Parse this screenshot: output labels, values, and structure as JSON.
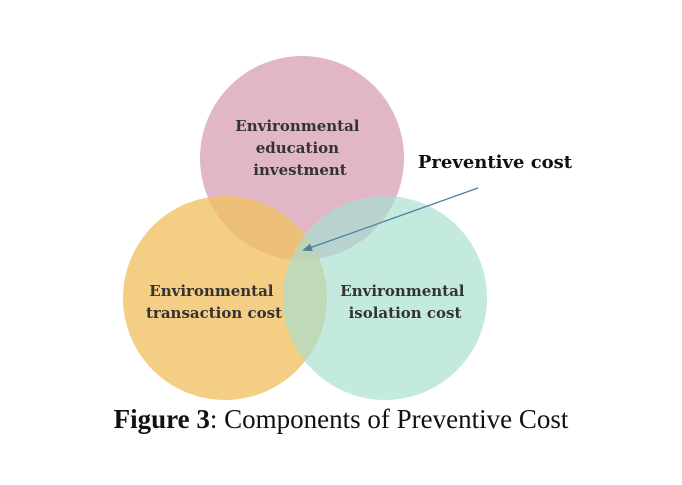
{
  "circles": {
    "top": {
      "lines": [
        "Environmental",
        "education",
        "investment"
      ],
      "color": "#d9a3b7"
    },
    "left": {
      "lines": [
        "Environmental",
        "transaction cost"
      ],
      "color": "#efc062"
    },
    "right": {
      "lines": [
        "Environmental",
        "isolation cost"
      ],
      "color": "#a8dfd0"
    }
  },
  "callout": {
    "label": "Preventive cost",
    "arrow_color": "#4a7fa6"
  },
  "caption": {
    "number": "Figure 3",
    "text": ": Components of Preventive Cost"
  }
}
